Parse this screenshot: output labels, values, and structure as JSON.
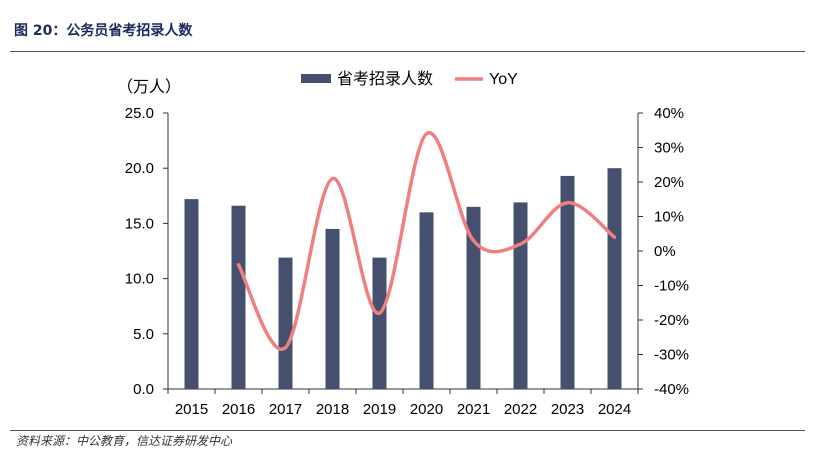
{
  "figure_title": "图 20：公务员省考招录人数",
  "source_note": "资料来源：中公教育，信达证券研发中心",
  "colors": {
    "bar": "#44506e",
    "line": "#f08080",
    "axis": "#333333",
    "title": "#1b2a5c"
  },
  "chart_data": {
    "type": "bar",
    "title": "",
    "categories": [
      "2015",
      "2016",
      "2017",
      "2018",
      "2019",
      "2020",
      "2021",
      "2022",
      "2023",
      "2024"
    ],
    "unit_label": "（万人）",
    "series": [
      {
        "name": "省考招录人数",
        "type": "bar",
        "axis": "left",
        "values": [
          17.2,
          16.6,
          11.9,
          14.5,
          11.9,
          16.0,
          16.5,
          16.9,
          19.3,
          20.0
        ]
      },
      {
        "name": "YoY",
        "type": "line",
        "axis": "right",
        "smooth": true,
        "values": [
          null,
          -4,
          -28,
          21,
          -18,
          34,
          3,
          2,
          14,
          4
        ]
      }
    ],
    "left_axis": {
      "ylim": [
        0,
        25
      ],
      "ticks": [
        "0.0",
        "5.0",
        "10.0",
        "15.0",
        "20.0",
        "25.0"
      ]
    },
    "right_axis": {
      "ylim": [
        -40,
        40
      ],
      "ticks": [
        "-40%",
        "-30%",
        "-20%",
        "-10%",
        "0%",
        "10%",
        "20%",
        "30%",
        "40%"
      ]
    },
    "legend": {
      "position": "top-center",
      "items": [
        "省考招录人数",
        "YoY"
      ]
    }
  }
}
